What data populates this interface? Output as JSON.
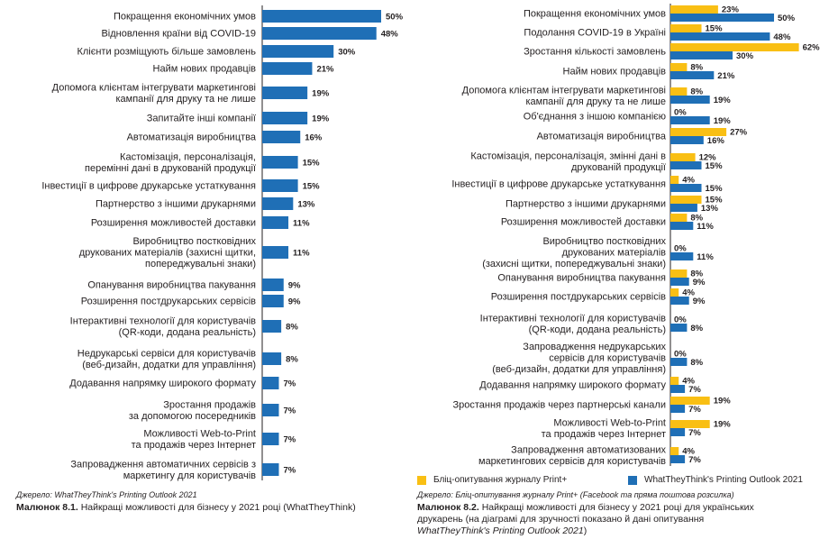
{
  "colors": {
    "blue": "#1f6fb6",
    "yellow": "#f9bf14",
    "text": "#231f20",
    "axis": "#231f20"
  },
  "left": {
    "source": "Джерело: WhatTheyThink's Printing Outlook 2021",
    "caption_label": "Малюнок 8.1.",
    "caption_text": "Найкращі можливості для бізнесу у 2021 році (WhatTheyThink)"
  },
  "right": {
    "source": "Джерело: Бліц-опитування журналу Print+ (Facebook та пряма поштова розсилка)",
    "caption_label": "Малюнок 8.2.",
    "caption_text_1": "Найкращі можливості для бізнесу у 2021 році для українських друкарень (на діаграмі для зручності показано й дані опитування ",
    "caption_italic": "WhatTheyThink's Printing Outlook 2021",
    "caption_text_2": ")",
    "legend": [
      {
        "label": "Бліц-опитування журналу Print+",
        "color": "#f9bf14"
      },
      {
        "label": "WhatTheyThink's Printing Outlook 2021",
        "color": "#1f6fb6"
      }
    ]
  },
  "chart_data": [
    {
      "type": "bar",
      "orientation": "horizontal",
      "unit": "%",
      "categories": [
        [
          "Покращення економічних умов"
        ],
        [
          "Відновлення країни від COVID-19"
        ],
        [
          "Клієнти розміщують більше замовлень"
        ],
        [
          "Найм нових продавців"
        ],
        [
          "Допомога клієнтам інтегрувати маркетингові",
          "кампанії для друку та не лише"
        ],
        [
          "Запитайте інші компанії"
        ],
        [
          "Автоматизація виробництва"
        ],
        [
          "Кастомізація, персоналізація,",
          "перемінні дані в друкованій продукції"
        ],
        [
          "Інвестиції в цифрове друкарське устаткування"
        ],
        [
          "Партнерство з іншими друкарнями"
        ],
        [
          "Розширення можливостей доставки"
        ],
        [
          "Виробництво постковідних",
          "друкованих матеріалів (захисні щитки,",
          "попереджувальні знаки)"
        ],
        [
          "Опанування виробництва пакування"
        ],
        [
          "Розширення постдрукарських сервісів"
        ],
        [
          "Інтерактивні технології для користувачів",
          "(QR-коди, додана реальність)"
        ],
        [
          "Недрукарські сервіси для користувачів",
          "(веб-дизайн, додатки для управління)"
        ],
        [
          "Додавання напрямку широкого формату"
        ],
        [
          "Зростання продажів",
          "за допомогою посередників"
        ],
        [
          "Можливості Web-to-Print",
          "та продажів через Інтернет"
        ],
        [
          "Запровадження автоматичних сервісів з",
          "маркетингу для користувачів"
        ]
      ],
      "series": [
        {
          "name": "WhatTheyThink's Printing Outlook 2021",
          "values": [
            50,
            48,
            30,
            21,
            19,
            19,
            16,
            15,
            15,
            13,
            11,
            11,
            9,
            9,
            8,
            8,
            7,
            7,
            7,
            7
          ]
        }
      ]
    },
    {
      "type": "bar",
      "orientation": "horizontal",
      "unit": "%",
      "categories": [
        [
          "Покращення економічних умов"
        ],
        [
          "Подолання COVID-19 в Україні"
        ],
        [
          "Зростання кількості замовлень"
        ],
        [
          "Найм нових продавців"
        ],
        [
          "Допомога клієнтам інтегрувати маркетингові",
          "кампанії для друку та не лише"
        ],
        [
          "Об'єднання з іншою компанією"
        ],
        [
          "Автоматизація виробництва"
        ],
        [
          "Кастомізація, персоналізація, змінні дані в",
          "друкованій продукції"
        ],
        [
          "Інвестиції в цифрове друкарське устаткування"
        ],
        [
          "Партнерство з іншими друкарнями"
        ],
        [
          "Розширення можливостей доставки"
        ],
        [
          "Виробництво постковідних",
          "друкованих матеріалів",
          "(захисні щитки, попереджувальні знаки)"
        ],
        [
          "Опанування виробництва пакування"
        ],
        [
          "Розширення постдрукарських сервісів"
        ],
        [
          "Інтерактивні технології для користувачів",
          "(QR-коди, додана реальність)"
        ],
        [
          "Запровадження недрукарських",
          "сервісів для користувачів",
          "(веб-дизайн, додатки для управління)"
        ],
        [
          "Додавання напрямку широкого формату"
        ],
        [
          "Зростання продажів через партнерські канали"
        ],
        [
          "Можливості Web-to-Print",
          "та продажів через Інтернет"
        ],
        [
          "Запровадження автоматизованих",
          "маркетингових сервісів для користувачів"
        ]
      ],
      "series": [
        {
          "name": "Бліц-опитування журналу Print+",
          "values": [
            23,
            15,
            62,
            8,
            8,
            0,
            27,
            12,
            4,
            15,
            8,
            0,
            8,
            4,
            0,
            0,
            4,
            19,
            19,
            4
          ]
        },
        {
          "name": "WhatTheyThink's Printing Outlook 2021",
          "values": [
            50,
            48,
            30,
            21,
            19,
            19,
            16,
            15,
            15,
            13,
            11,
            11,
            9,
            9,
            8,
            8,
            7,
            7,
            7,
            7
          ]
        }
      ]
    }
  ]
}
